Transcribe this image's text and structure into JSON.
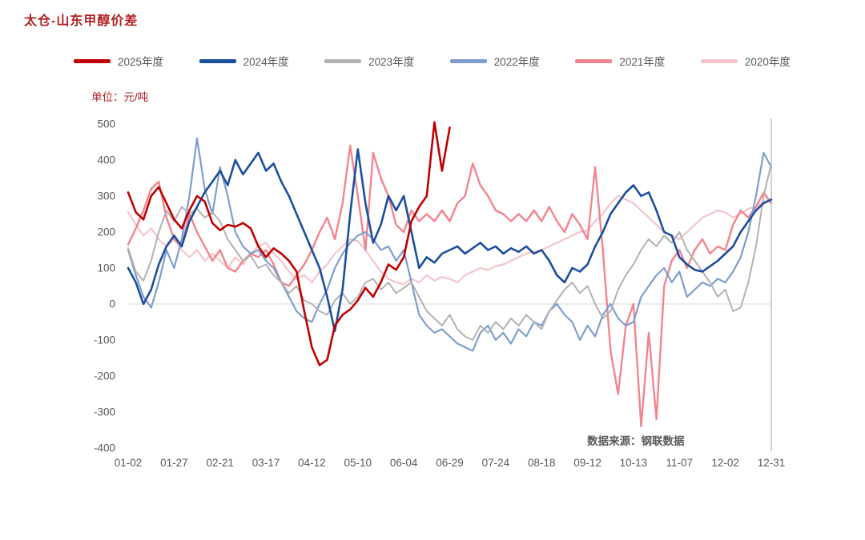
{
  "title": "太仓-山东甲醇价差",
  "unit_label": "单位：元/吨",
  "source_label": "数据来源：钢联数据",
  "colors": {
    "title": "#b22222",
    "axis_text": "#595959",
    "zero_line": "#d9d9d9",
    "right_axis": "#a6a6a6",
    "background": "#ffffff"
  },
  "chart_data": {
    "type": "line",
    "title": "太仓-山东甲醇价差",
    "ylabel": "元/吨",
    "ylim": [
      -400,
      500
    ],
    "ytick_interval": 100,
    "grid": "zero-line-only",
    "legend_position": "top",
    "x_tick_labels": [
      "01-02",
      "01-27",
      "02-21",
      "03-17",
      "04-12",
      "05-10",
      "06-04",
      "06-29",
      "07-24",
      "08-18",
      "09-12",
      "10-13",
      "11-07",
      "12-02",
      "12-31"
    ],
    "series": [
      {
        "name": "2025年度",
        "color": "#c00000",
        "stroke_width": 2.6,
        "end_fraction": 0.5,
        "values": [
          310,
          255,
          235,
          300,
          325,
          280,
          235,
          210,
          260,
          300,
          285,
          225,
          205,
          220,
          215,
          225,
          210,
          160,
          130,
          155,
          140,
          120,
          90,
          -20,
          -120,
          -170,
          -155,
          -60,
          -30,
          -15,
          10,
          45,
          20,
          60,
          110,
          95,
          130,
          230,
          270,
          300,
          505,
          370,
          490
        ]
      },
      {
        "name": "2024年度",
        "color": "#1c4e9e",
        "stroke_width": 2.6,
        "values": [
          100,
          60,
          0,
          40,
          110,
          160,
          190,
          160,
          230,
          270,
          310,
          340,
          370,
          330,
          400,
          360,
          390,
          420,
          370,
          390,
          340,
          300,
          250,
          200,
          150,
          100,
          20,
          -75,
          40,
          250,
          430,
          280,
          170,
          220,
          300,
          260,
          300,
          200,
          100,
          130,
          115,
          140,
          150,
          160,
          140,
          155,
          170,
          150,
          160,
          140,
          155,
          145,
          160,
          140,
          150,
          120,
          80,
          60,
          100,
          90,
          110,
          160,
          200,
          250,
          280,
          310,
          330,
          300,
          310,
          260,
          200,
          190,
          130,
          110,
          95,
          90,
          105,
          120,
          140,
          160,
          200,
          230,
          260,
          280,
          290
        ]
      },
      {
        "name": "2023年度",
        "color": "#b3b3b3",
        "stroke_width": 2.0,
        "values": [
          155,
          90,
          65,
          120,
          200,
          260,
          230,
          270,
          250,
          265,
          240,
          255,
          230,
          180,
          150,
          120,
          135,
          100,
          110,
          80,
          60,
          30,
          50,
          10,
          0,
          -20,
          -30,
          10,
          30,
          0,
          20,
          60,
          70,
          40,
          60,
          30,
          45,
          60,
          20,
          -20,
          -40,
          -60,
          -30,
          -70,
          -90,
          -100,
          -60,
          -80,
          -50,
          -70,
          -40,
          -60,
          -30,
          -50,
          -70,
          -20,
          10,
          40,
          60,
          30,
          50,
          0,
          -40,
          -20,
          40,
          80,
          110,
          150,
          180,
          160,
          190,
          170,
          200,
          150,
          120,
          90,
          60,
          20,
          40,
          -20,
          -10,
          60,
          160,
          300,
          390
        ]
      },
      {
        "name": "2022年度",
        "color": "#7e9dce",
        "stroke_width": 2.2,
        "values": [
          150,
          80,
          20,
          -10,
          60,
          150,
          100,
          180,
          300,
          460,
          320,
          250,
          380,
          300,
          200,
          160,
          140,
          150,
          120,
          100,
          60,
          20,
          -20,
          -40,
          -50,
          0,
          40,
          100,
          140,
          170,
          190,
          200,
          180,
          150,
          160,
          120,
          150,
          60,
          -30,
          -60,
          -80,
          -70,
          -90,
          -110,
          -120,
          -130,
          -80,
          -60,
          -100,
          -80,
          -110,
          -70,
          -90,
          -50,
          -60,
          -20,
          0,
          -30,
          -50,
          -100,
          -60,
          -90,
          -30,
          0,
          -40,
          -60,
          -50,
          20,
          50,
          80,
          100,
          60,
          90,
          20,
          40,
          60,
          50,
          70,
          60,
          90,
          130,
          200,
          300,
          420,
          380
        ]
      },
      {
        "name": "2021年度",
        "color": "#f2858f",
        "stroke_width": 2.4,
        "values": [
          165,
          210,
          260,
          320,
          340,
          240,
          180,
          160,
          250,
          200,
          160,
          120,
          150,
          100,
          90,
          120,
          140,
          130,
          150,
          110,
          60,
          50,
          80,
          110,
          150,
          200,
          240,
          180,
          280,
          440,
          300,
          150,
          420,
          350,
          300,
          220,
          200,
          260,
          230,
          250,
          230,
          260,
          230,
          280,
          300,
          390,
          330,
          300,
          260,
          250,
          230,
          250,
          230,
          260,
          230,
          270,
          230,
          200,
          250,
          220,
          180,
          380,
          150,
          -130,
          -250,
          -60,
          0,
          -340,
          -80,
          -320,
          50,
          120,
          150,
          100,
          150,
          180,
          140,
          160,
          150,
          220,
          260,
          240,
          270,
          310,
          280
        ]
      },
      {
        "name": "2020年度",
        "color": "#f3c5ca",
        "stroke_width": 2.2,
        "values": [
          255,
          220,
          190,
          210,
          180,
          160,
          180,
          150,
          130,
          150,
          120,
          140,
          120,
          100,
          130,
          110,
          140,
          160,
          170,
          140,
          120,
          90,
          70,
          80,
          60,
          90,
          110,
          140,
          160,
          180,
          175,
          150,
          120,
          90,
          70,
          60,
          55,
          70,
          60,
          80,
          65,
          75,
          70,
          60,
          80,
          90,
          100,
          95,
          105,
          110,
          120,
          130,
          140,
          145,
          150,
          160,
          170,
          180,
          190,
          200,
          205,
          230,
          250,
          280,
          300,
          290,
          280,
          260,
          240,
          220,
          200,
          190,
          180,
          200,
          220,
          240,
          250,
          260,
          255,
          240,
          250,
          265,
          270,
          285,
          290
        ]
      }
    ]
  }
}
